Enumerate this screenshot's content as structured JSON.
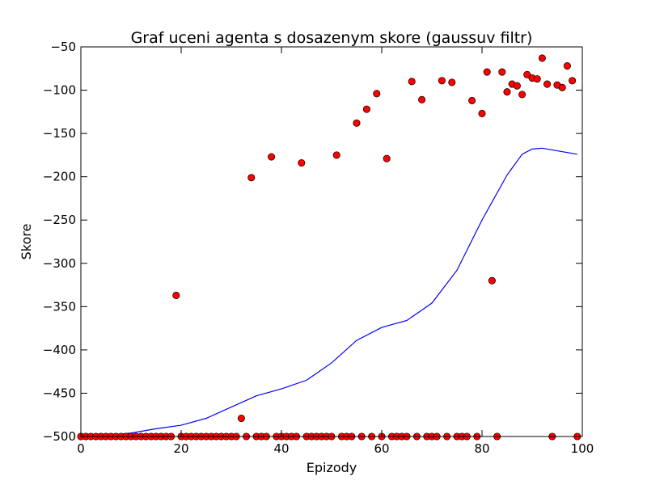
{
  "chart_data": {
    "type": "scatter",
    "title": "Graf uceni agenta s dosazenym skore (gaussuv filtr)",
    "xlabel": "Epizody",
    "ylabel": "Skore",
    "xlim": [
      0,
      100
    ],
    "ylim": [
      -500,
      -50
    ],
    "xticks": [
      0,
      20,
      40,
      60,
      80,
      100
    ],
    "yticks": [
      -50,
      -100,
      -150,
      -200,
      -250,
      -300,
      -350,
      -400,
      -450,
      -500
    ],
    "grid": false,
    "legend": "none",
    "colors": {
      "points": "#ff0000",
      "point_edge": "#000000",
      "line": "#0000ff"
    },
    "series": [
      {
        "kind": "scatter",
        "points": [
          [
            0,
            -500
          ],
          [
            1,
            -500
          ],
          [
            2,
            -500
          ],
          [
            3,
            -500
          ],
          [
            4,
            -500
          ],
          [
            5,
            -500
          ],
          [
            6,
            -500
          ],
          [
            7,
            -500
          ],
          [
            8,
            -500
          ],
          [
            9,
            -500
          ],
          [
            10,
            -500
          ],
          [
            11,
            -500
          ],
          [
            12,
            -500
          ],
          [
            13,
            -500
          ],
          [
            14,
            -500
          ],
          [
            15,
            -500
          ],
          [
            16,
            -500
          ],
          [
            17,
            -500
          ],
          [
            18,
            -500
          ],
          [
            19,
            -337
          ],
          [
            20,
            -500
          ],
          [
            21,
            -500
          ],
          [
            22,
            -500
          ],
          [
            23,
            -500
          ],
          [
            24,
            -500
          ],
          [
            25,
            -500
          ],
          [
            26,
            -500
          ],
          [
            27,
            -500
          ],
          [
            28,
            -500
          ],
          [
            29,
            -500
          ],
          [
            30,
            -500
          ],
          [
            31,
            -500
          ],
          [
            32,
            -479
          ],
          [
            33,
            -500
          ],
          [
            34,
            -201
          ],
          [
            35,
            -500
          ],
          [
            36,
            -500
          ],
          [
            37,
            -500
          ],
          [
            38,
            -177
          ],
          [
            39,
            -500
          ],
          [
            40,
            -500
          ],
          [
            41,
            -500
          ],
          [
            42,
            -500
          ],
          [
            43,
            -500
          ],
          [
            44,
            -184
          ],
          [
            45,
            -500
          ],
          [
            46,
            -500
          ],
          [
            47,
            -500
          ],
          [
            48,
            -500
          ],
          [
            49,
            -500
          ],
          [
            50,
            -500
          ],
          [
            51,
            -175
          ],
          [
            52,
            -500
          ],
          [
            53,
            -500
          ],
          [
            54,
            -500
          ],
          [
            55,
            -138
          ],
          [
            56,
            -500
          ],
          [
            57,
            -122
          ],
          [
            58,
            -500
          ],
          [
            59,
            -104
          ],
          [
            60,
            -500
          ],
          [
            61,
            -179
          ],
          [
            62,
            -500
          ],
          [
            63,
            -500
          ],
          [
            64,
            -500
          ],
          [
            65,
            -500
          ],
          [
            66,
            -90
          ],
          [
            67,
            -500
          ],
          [
            68,
            -111
          ],
          [
            69,
            -500
          ],
          [
            70,
            -500
          ],
          [
            71,
            -500
          ],
          [
            72,
            -89
          ],
          [
            73,
            -500
          ],
          [
            74,
            -91
          ],
          [
            75,
            -500
          ],
          [
            76,
            -500
          ],
          [
            77,
            -500
          ],
          [
            78,
            -112
          ],
          [
            79,
            -500
          ],
          [
            80,
            -127
          ],
          [
            81,
            -79
          ],
          [
            82,
            -320
          ],
          [
            83,
            -500
          ],
          [
            84,
            -79
          ],
          [
            85,
            -102
          ],
          [
            86,
            -93
          ],
          [
            87,
            -95
          ],
          [
            88,
            -105
          ],
          [
            89,
            -82
          ],
          [
            90,
            -86
          ],
          [
            91,
            -87
          ],
          [
            92,
            -63
          ],
          [
            93,
            -93
          ],
          [
            94,
            -500
          ],
          [
            95,
            -94
          ],
          [
            96,
            -97
          ],
          [
            97,
            -72
          ],
          [
            98,
            -89
          ],
          [
            99,
            -500
          ]
        ]
      },
      {
        "kind": "line",
        "points": [
          [
            0,
            -500
          ],
          [
            5,
            -499
          ],
          [
            10,
            -496
          ],
          [
            15,
            -491
          ],
          [
            20,
            -487
          ],
          [
            25,
            -479
          ],
          [
            30,
            -466
          ],
          [
            35,
            -453
          ],
          [
            40,
            -445
          ],
          [
            45,
            -435
          ],
          [
            50,
            -415
          ],
          [
            55,
            -389
          ],
          [
            60,
            -374
          ],
          [
            65,
            -366
          ],
          [
            70,
            -346
          ],
          [
            75,
            -308
          ],
          [
            80,
            -250
          ],
          [
            85,
            -198
          ],
          [
            88,
            -174
          ],
          [
            90,
            -168
          ],
          [
            92,
            -167
          ],
          [
            95,
            -170
          ],
          [
            99,
            -174
          ]
        ]
      }
    ]
  }
}
